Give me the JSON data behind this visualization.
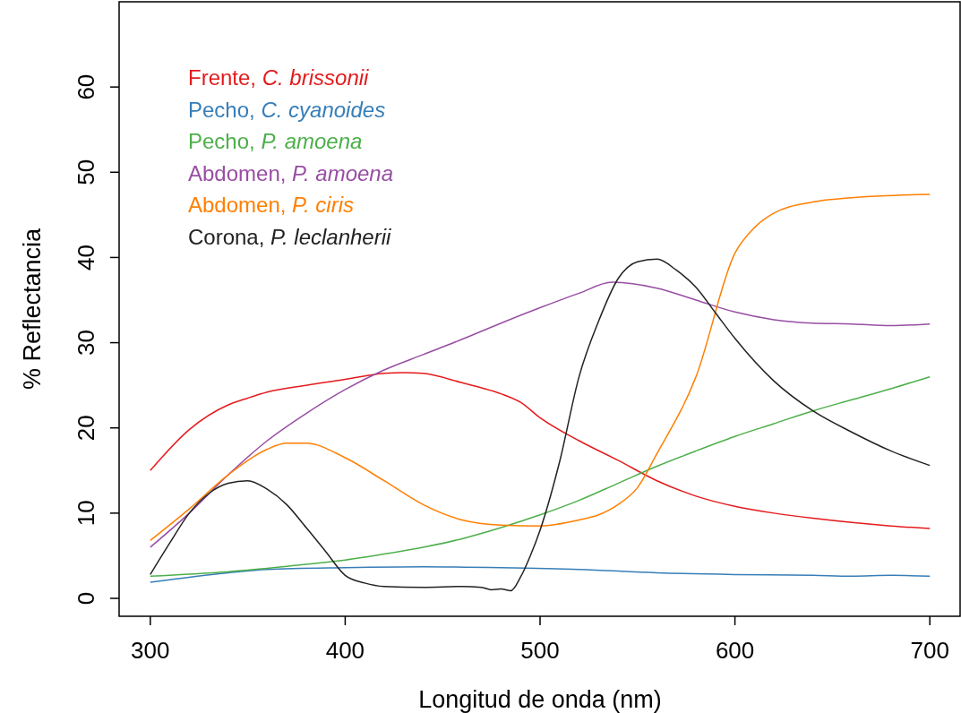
{
  "chart_data": {
    "type": "line",
    "xlabel": "Longitud de onda (nm)",
    "ylabel": "% Reflectancia",
    "xlim": [
      284,
      716
    ],
    "ylim": [
      -2.1,
      70
    ],
    "xticks": [
      300,
      400,
      500,
      600,
      700
    ],
    "yticks": [
      0,
      10,
      20,
      30,
      40,
      50,
      60
    ],
    "grid": false,
    "legend": "top left",
    "marker": "none",
    "line_style": "solid",
    "series": [
      {
        "name": "Frente, C. brissonii",
        "color": "#e41a1c",
        "x": [
          300,
          320,
          340,
          350,
          360,
          380,
          400,
          420,
          430,
          440,
          460,
          470,
          480,
          490,
          500,
          520,
          540,
          560,
          580,
          600,
          620,
          640,
          660,
          680,
          700
        ],
        "values": [
          15,
          19.8,
          22.7,
          23.5,
          24.2,
          25,
          25.7,
          26.4,
          26.5,
          26.4,
          25.3,
          24.7,
          24,
          23,
          21.2,
          18.5,
          16.2,
          13.8,
          12,
          10.8,
          10,
          9.4,
          8.9,
          8.5,
          8.2
        ]
      },
      {
        "name": "Pecho, C. cyanoides",
        "color": "#377eb8",
        "x": [
          300,
          340,
          360,
          400,
          440,
          480,
          520,
          560,
          600,
          640,
          660,
          680,
          700
        ],
        "values": [
          1.9,
          3,
          3.4,
          3.6,
          3.7,
          3.6,
          3.4,
          3,
          2.8,
          2.7,
          2.6,
          2.7,
          2.6
        ]
      },
      {
        "name": "Pecho, P. amoena",
        "color": "#4daf4a",
        "x": [
          300,
          350,
          380,
          400,
          420,
          440,
          460,
          480,
          500,
          520,
          540,
          560,
          580,
          600,
          620,
          640,
          660,
          680,
          700
        ],
        "values": [
          2.6,
          3.3,
          4,
          4.5,
          5.2,
          6,
          7,
          8.3,
          9.8,
          11.5,
          13.5,
          15.5,
          17.3,
          19,
          20.5,
          22,
          23.3,
          24.6,
          26
        ]
      },
      {
        "name": "Abdomen, P. amoena",
        "color": "#984ea3",
        "x": [
          300,
          320,
          340,
          360,
          380,
          400,
          420,
          440,
          460,
          480,
          500,
          520,
          537,
          560,
          580,
          600,
          620,
          640,
          660,
          680,
          700
        ],
        "values": [
          6,
          10,
          14.5,
          18.5,
          21.7,
          24.5,
          26.8,
          28.6,
          30.4,
          32.3,
          34.1,
          35.8,
          37.1,
          36.4,
          35,
          33.6,
          32.7,
          32.3,
          32.2,
          32,
          32.2
        ]
      },
      {
        "name": "Abdomen, P. ciris",
        "color": "#ff7f00",
        "x": [
          300,
          320,
          340,
          360,
          370,
          380,
          400,
          420,
          440,
          460,
          480,
          500,
          520,
          530,
          540,
          550,
          560,
          580,
          600,
          610,
          620,
          640,
          660,
          700
        ],
        "values": [
          6.8,
          10.5,
          14.5,
          17.5,
          18.2,
          18.2,
          16.5,
          13.8,
          11,
          9.2,
          8.6,
          8.5,
          9.2,
          9.8,
          11,
          13,
          17,
          26,
          40.5,
          43.5,
          45.2,
          46.5,
          47,
          47.4
        ]
      },
      {
        "name": "Corona, P. leclanherii",
        "color": "#222222",
        "x": [
          300,
          310,
          320,
          330,
          340,
          350,
          360,
          370,
          380,
          390,
          400,
          410,
          420,
          440,
          460,
          470,
          475,
          480,
          485,
          490,
          495,
          500,
          510,
          520,
          530,
          540,
          550,
          560,
          570,
          580,
          590,
          600,
          620,
          640,
          660,
          680,
          700
        ],
        "values": [
          2.8,
          6.5,
          10,
          12.3,
          13.5,
          13.8,
          12.8,
          11,
          8.3,
          5.5,
          2.7,
          1.8,
          1.4,
          1.3,
          1.4,
          1.3,
          1,
          1.1,
          0.9,
          2.5,
          5,
          8,
          16,
          26,
          32.5,
          37.5,
          39.5,
          39.8,
          38.5,
          36.5,
          33.5,
          30.5,
          25.5,
          22,
          19.5,
          17.3,
          15.6
        ]
      }
    ]
  }
}
